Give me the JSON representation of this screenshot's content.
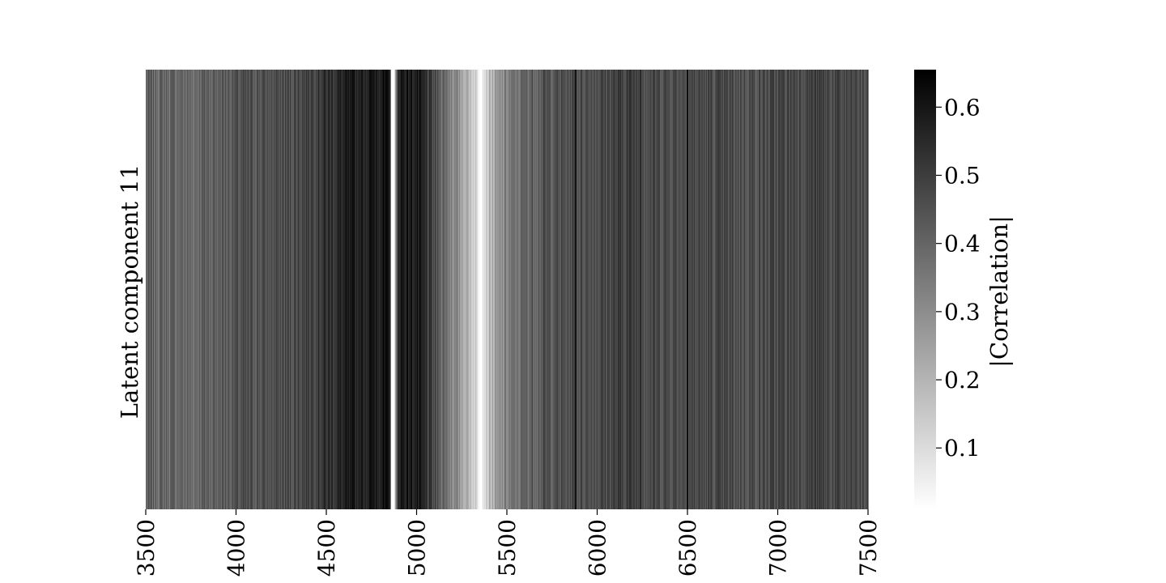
{
  "chart_data": {
    "type": "heatmap",
    "title": "",
    "ylabel": "Latent component 11",
    "xlabel": "",
    "colorbar_label": "|Correlation|",
    "colormap": "Greys",
    "x_range": [
      3500,
      7500
    ],
    "x_ticks": [
      "3500",
      "4000",
      "4500",
      "5000",
      "5500",
      "6000",
      "6500",
      "7000",
      "7500"
    ],
    "colorbar_range": [
      0.01,
      0.655
    ],
    "colorbar_ticks": [
      "0.1",
      "0.2",
      "0.3",
      "0.4",
      "0.5",
      "0.6"
    ],
    "colorbar_tick_values": [
      0.1,
      0.2,
      0.3,
      0.4,
      0.5,
      0.6
    ],
    "profile_x": [
      3500,
      3700,
      3750,
      3800,
      3900,
      4000,
      4150,
      4300,
      4400,
      4500,
      4600,
      4700,
      4800,
      4850,
      4870,
      4900,
      5000,
      5050,
      5100,
      5150,
      5200,
      5250,
      5300,
      5330,
      5350,
      5400,
      5450,
      5500,
      5550,
      5600,
      5700,
      5800,
      5900,
      6000,
      6200,
      6250,
      6300,
      6500,
      6700,
      6900,
      7000,
      7100,
      7200,
      7300,
      7500
    ],
    "profile_y": [
      0.4,
      0.4,
      0.38,
      0.41,
      0.42,
      0.44,
      0.45,
      0.46,
      0.5,
      0.53,
      0.56,
      0.58,
      0.6,
      0.58,
      0.01,
      0.6,
      0.58,
      0.52,
      0.45,
      0.4,
      0.32,
      0.25,
      0.18,
      0.1,
      0.05,
      0.18,
      0.26,
      0.33,
      0.36,
      0.4,
      0.44,
      0.45,
      0.46,
      0.47,
      0.5,
      0.48,
      0.47,
      0.47,
      0.46,
      0.46,
      0.47,
      0.48,
      0.49,
      0.47,
      0.46
    ],
    "dark_spikes": [
      {
        "x": 5880,
        "value": 0.62
      },
      {
        "x": 6500,
        "value": 0.62
      },
      {
        "x": 6240,
        "value": 0.55
      }
    ],
    "white_gaps": [
      {
        "x": 4865,
        "value": 0.01
      }
    ]
  }
}
